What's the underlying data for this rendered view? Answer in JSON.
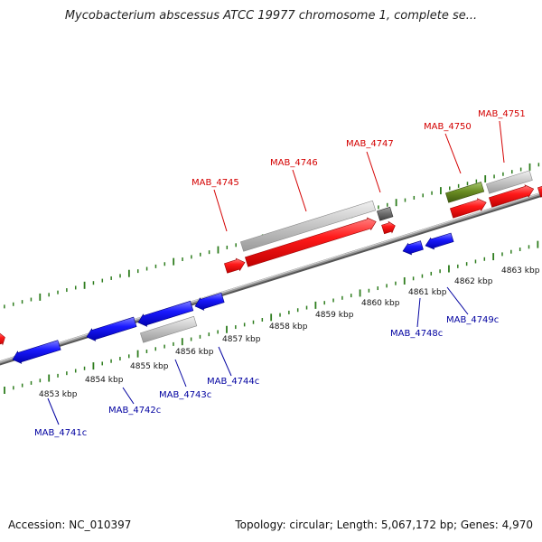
{
  "title": "Mycobacterium abscessus ATCC 19977 chromosome 1, complete se...",
  "footer": {
    "accession": "Accession: NC_010397",
    "summary": "Topology: circular; Length: 5,067,172 bp; Genes: 4,970"
  },
  "colors": {
    "forward_label": "#d40000",
    "reverse_label": "#0000a0",
    "red_feature": "#ff1a1a",
    "blue_feature": "#1a1aff",
    "grey_feature": "#c8c8c8",
    "dark_grey_feature": "#707070",
    "olive_feature": "#6b8e23",
    "tick_green": "#2e7d1e",
    "backbone": "#808080"
  },
  "ticks": {
    "unit": "kbp",
    "labels": [
      "4853 kbp",
      "4854 kbp",
      "4855 kbp",
      "4856 kbp",
      "4857 kbp",
      "4858 kbp",
      "4859 kbp",
      "4860 kbp",
      "4861 kbp",
      "4862 kbp",
      "4863 kbp"
    ]
  },
  "genes_forward": [
    "MAB_4745",
    "MAB_4746",
    "MAB_4747",
    "MAB_4750",
    "MAB_4751"
  ],
  "genes_reverse": [
    "MAB_4741c",
    "MAB_4742c",
    "MAB_4743c",
    "MAB_4744c",
    "MAB_4748c",
    "MAB_4749c"
  ]
}
